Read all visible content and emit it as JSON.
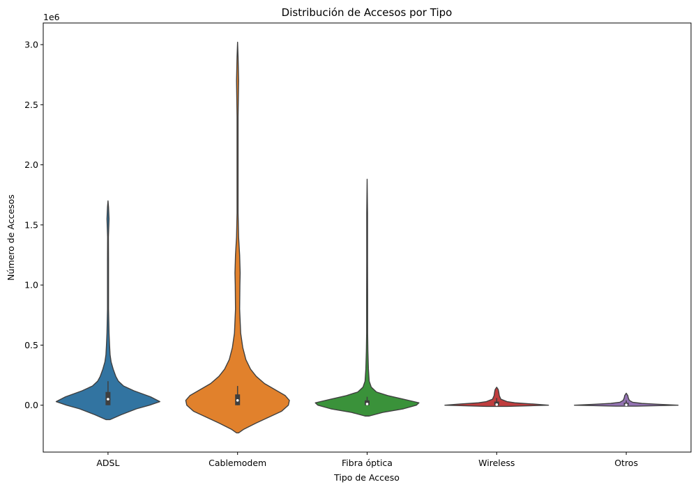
{
  "chart_data": {
    "type": "violin",
    "title": "Distribución de Accesos por Tipo",
    "xlabel": "Tipo de Acceso",
    "ylabel": "Número de Accesos",
    "y_offset_label": "1e6",
    "ylim": [
      -0.39,
      3.18
    ],
    "yticks": [
      0.0,
      0.5,
      1.0,
      1.5,
      2.0,
      2.5,
      3.0
    ],
    "ytick_labels": [
      "0.0",
      "0.5",
      "1.0",
      "1.5",
      "2.0",
      "2.5",
      "3.0"
    ],
    "grid": false,
    "categories": [
      "ADSL",
      "Cablemodem",
      "Fibra óptica",
      "Wireless",
      "Otros"
    ],
    "series": [
      {
        "category": "ADSL",
        "color": "#3274a1",
        "min": 0.0,
        "max": 1.7,
        "q1": 0.0,
        "median": 0.05,
        "q3": 0.11,
        "whisker_low": 0.0,
        "whisker_high": 0.2,
        "density": [
          [
            -0.12,
            0.04
          ],
          [
            -0.08,
            0.25
          ],
          [
            -0.03,
            0.55
          ],
          [
            0.0,
            0.8
          ],
          [
            0.03,
            1.0
          ],
          [
            0.07,
            0.82
          ],
          [
            0.12,
            0.5
          ],
          [
            0.16,
            0.3
          ],
          [
            0.2,
            0.2
          ],
          [
            0.24,
            0.15
          ],
          [
            0.3,
            0.1
          ],
          [
            0.36,
            0.06
          ],
          [
            0.42,
            0.04
          ],
          [
            0.5,
            0.03
          ],
          [
            0.6,
            0.02
          ],
          [
            0.8,
            0.01
          ],
          [
            1.0,
            0.01
          ],
          [
            1.2,
            0.01
          ],
          [
            1.4,
            0.008
          ],
          [
            1.55,
            0.02
          ],
          [
            1.65,
            0.01
          ],
          [
            1.7,
            0.0
          ]
        ]
      },
      {
        "category": "Cablemodem",
        "color": "#e1812c",
        "min": 0.0,
        "max": 3.02,
        "q1": 0.0,
        "median": 0.04,
        "q3": 0.09,
        "whisker_low": 0.0,
        "whisker_high": 0.16,
        "density": [
          [
            -0.23,
            0.02
          ],
          [
            -0.2,
            0.12
          ],
          [
            -0.15,
            0.35
          ],
          [
            -0.1,
            0.6
          ],
          [
            -0.05,
            0.85
          ],
          [
            0.0,
            0.98
          ],
          [
            0.04,
            1.0
          ],
          [
            0.08,
            0.92
          ],
          [
            0.13,
            0.72
          ],
          [
            0.18,
            0.52
          ],
          [
            0.24,
            0.36
          ],
          [
            0.3,
            0.25
          ],
          [
            0.38,
            0.16
          ],
          [
            0.48,
            0.1
          ],
          [
            0.6,
            0.06
          ],
          [
            0.8,
            0.04
          ],
          [
            1.0,
            0.045
          ],
          [
            1.1,
            0.05
          ],
          [
            1.25,
            0.04
          ],
          [
            1.4,
            0.02
          ],
          [
            1.6,
            0.01
          ],
          [
            2.0,
            0.01
          ],
          [
            2.4,
            0.01
          ],
          [
            2.7,
            0.02
          ],
          [
            2.9,
            0.01
          ],
          [
            3.02,
            0.0
          ]
        ]
      },
      {
        "category": "Fibra óptica",
        "color": "#3a923a",
        "min": 0.0,
        "max": 1.88,
        "q1": 0.0,
        "median": 0.01,
        "q3": 0.04,
        "whisker_low": 0.0,
        "whisker_high": 0.07,
        "density": [
          [
            -0.09,
            0.04
          ],
          [
            -0.06,
            0.3
          ],
          [
            -0.03,
            0.7
          ],
          [
            0.0,
            0.95
          ],
          [
            0.02,
            1.0
          ],
          [
            0.05,
            0.7
          ],
          [
            0.08,
            0.4
          ],
          [
            0.11,
            0.18
          ],
          [
            0.15,
            0.08
          ],
          [
            0.2,
            0.04
          ],
          [
            0.3,
            0.025
          ],
          [
            0.45,
            0.015
          ],
          [
            0.6,
            0.01
          ],
          [
            0.9,
            0.01
          ],
          [
            1.2,
            0.008
          ],
          [
            1.6,
            0.008
          ],
          [
            1.88,
            0.0
          ]
        ]
      },
      {
        "category": "Wireless",
        "color": "#c03d3e",
        "min": 0.0,
        "max": 0.15,
        "q1": 0.0,
        "median": 0.005,
        "q3": 0.03,
        "whisker_low": 0.0,
        "whisker_high": 0.06,
        "density": [
          [
            -0.01,
            0.2
          ],
          [
            0.0,
            1.0
          ],
          [
            0.01,
            0.7
          ],
          [
            0.02,
            0.35
          ],
          [
            0.03,
            0.2
          ],
          [
            0.05,
            0.08
          ],
          [
            0.08,
            0.05
          ],
          [
            0.11,
            0.04
          ],
          [
            0.13,
            0.03
          ],
          [
            0.15,
            0.0
          ]
        ]
      },
      {
        "category": "Otros",
        "color": "#9372b2",
        "min": 0.0,
        "max": 0.1,
        "q1": 0.0,
        "median": 0.003,
        "q3": 0.02,
        "whisker_low": 0.0,
        "whisker_high": 0.04,
        "density": [
          [
            -0.008,
            0.2
          ],
          [
            0.0,
            1.0
          ],
          [
            0.008,
            0.6
          ],
          [
            0.015,
            0.3
          ],
          [
            0.025,
            0.12
          ],
          [
            0.04,
            0.06
          ],
          [
            0.06,
            0.04
          ],
          [
            0.08,
            0.03
          ],
          [
            0.1,
            0.0
          ]
        ]
      }
    ]
  }
}
